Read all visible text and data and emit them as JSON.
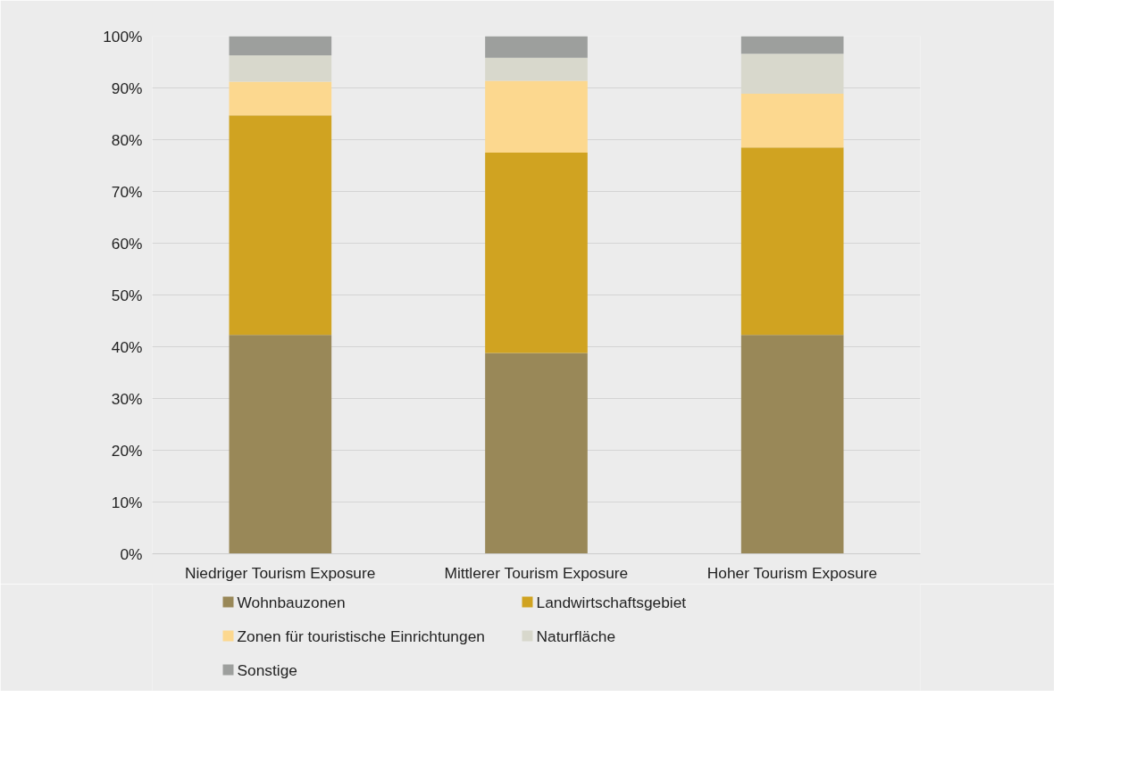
{
  "chart_data": {
    "type": "bar",
    "stacked": true,
    "categories": [
      "Niedriger Tourism Exposure",
      "Mittlerer Tourism Exposure",
      "Hoher Tourism Exposure"
    ],
    "series": [
      {
        "name": "Wohnbauzonen",
        "color": "#998858",
        "values": [
          42.3,
          38.8,
          42.3
        ]
      },
      {
        "name": "Landwirtschaftsgebiet",
        "color": "#d0a321",
        "values": [
          42.4,
          38.7,
          36.2
        ]
      },
      {
        "name": "Zonen für touristische Einrichtungen",
        "color": "#fcd88f",
        "values": [
          6.5,
          13.9,
          10.4
        ]
      },
      {
        "name": "Naturfläche",
        "color": "#d8d8cc",
        "values": [
          5.1,
          4.4,
          7.7
        ]
      },
      {
        "name": "Sonstige",
        "color": "#9d9f9d",
        "values": [
          3.7,
          4.2,
          3.4
        ]
      }
    ],
    "ylim": [
      0,
      100
    ],
    "yticks": [
      {
        "value": 0,
        "label": "0%"
      },
      {
        "value": 10,
        "label": "10%"
      },
      {
        "value": 20,
        "label": "20%"
      },
      {
        "value": 30,
        "label": "30%"
      },
      {
        "value": 40,
        "label": "40%"
      },
      {
        "value": 50,
        "label": "50%"
      },
      {
        "value": 60,
        "label": "60%"
      },
      {
        "value": 70,
        "label": "70%"
      },
      {
        "value": 80,
        "label": "80%"
      },
      {
        "value": 90,
        "label": "90%"
      },
      {
        "value": 100,
        "label": "100%"
      }
    ],
    "grid": "y",
    "legend": "bottom"
  }
}
